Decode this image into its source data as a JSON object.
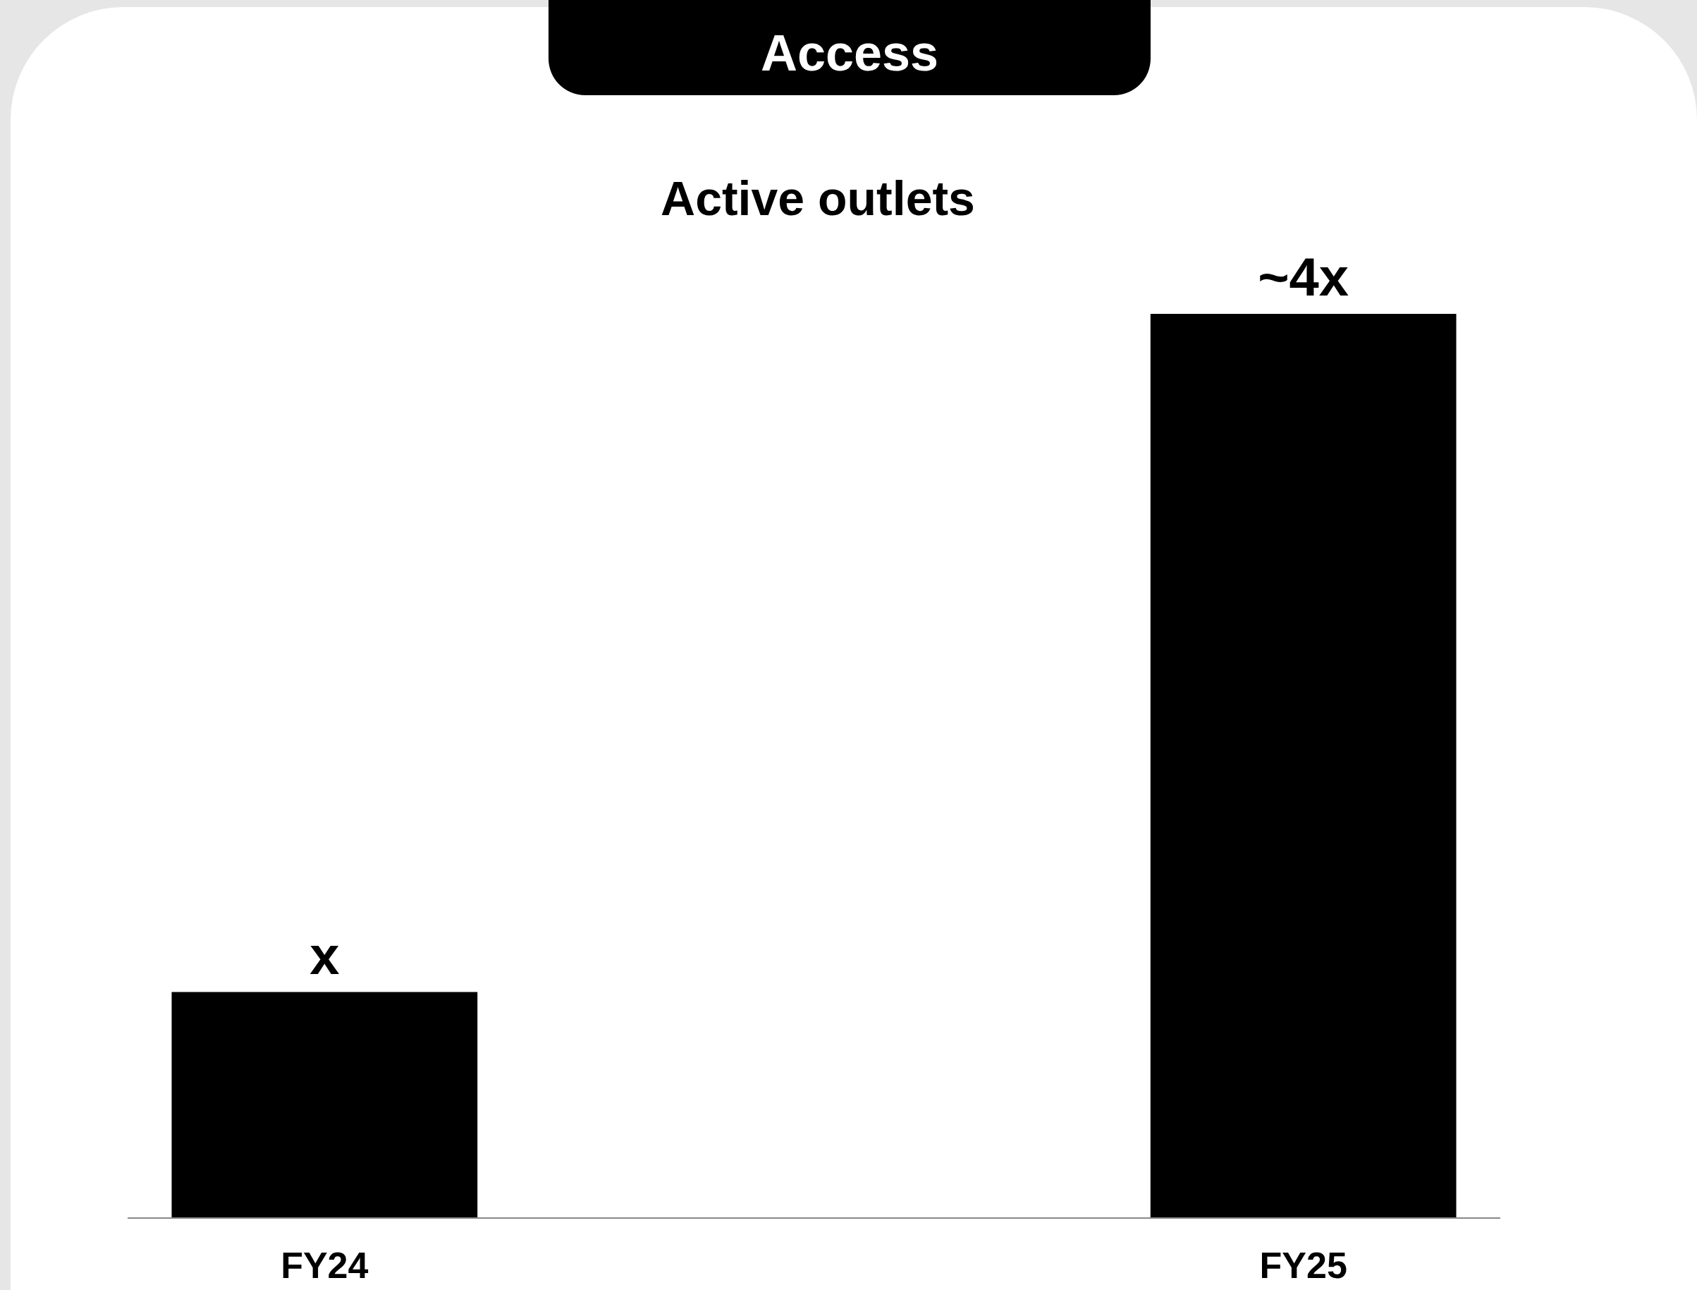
{
  "chart_data": {
    "type": "bar",
    "title": "Access",
    "subtitle": "Active outlets",
    "categories": [
      "FY24",
      "FY25"
    ],
    "values": [
      1,
      4
    ],
    "value_labels": [
      "x",
      "~4x"
    ],
    "color": "#000000",
    "ylim": [
      0,
      4
    ]
  }
}
